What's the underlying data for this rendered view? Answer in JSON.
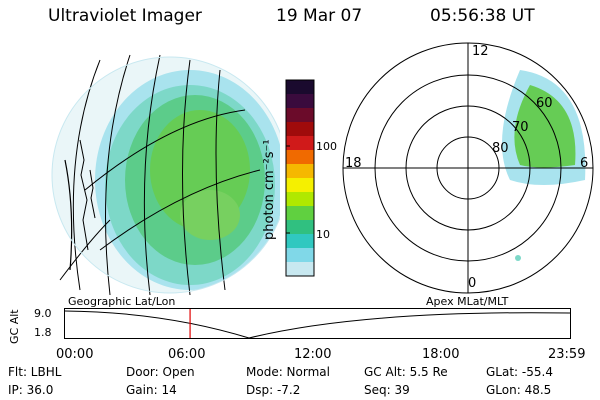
{
  "header": {
    "title": "Ultraviolet Imager",
    "date": "19 Mar 07",
    "time": "05:56:38 UT"
  },
  "colorbar": {
    "label": "photon cm⁻²s⁻¹",
    "ticks": [
      "100",
      "10"
    ],
    "colors": [
      "#1a0a2e",
      "#3a0b3d",
      "#6b0b2a",
      "#a00b0b",
      "#d01a1a",
      "#f06a00",
      "#f5b800",
      "#f5f000",
      "#b0e800",
      "#60d040",
      "#30c080",
      "#30c8c0",
      "#80d8e8",
      "#c8e8f0"
    ]
  },
  "polar_plot": {
    "mlt_labels": [
      "12",
      "18",
      "6",
      "0"
    ],
    "lat_labels": [
      "60",
      "70",
      "80"
    ],
    "coord_label": "Apex MLat/MLT"
  },
  "geo_plot": {
    "coord_label": "Geographic Lat/Lon"
  },
  "timeline": {
    "ylabel": "GC Alt",
    "yticks": [
      "9.0",
      "1.8"
    ],
    "xticks": [
      "00:00",
      "06:00",
      "12:00",
      "18:00",
      "23:59"
    ],
    "current_marker_hours": 5.94,
    "marker_color": "#e00000"
  },
  "info": {
    "flt": "Flt: LBHL",
    "ip": "IP: 36.0",
    "door": "Door: Open",
    "gain": "Gain: 14",
    "mode": "Mode: Normal",
    "dsp": "Dsp:    -7.2",
    "gcalt": "GC Alt: 5.5 Re",
    "seq": "Seq: 39",
    "glat": "GLat: -55.4",
    "glon": "GLon:  48.5"
  }
}
